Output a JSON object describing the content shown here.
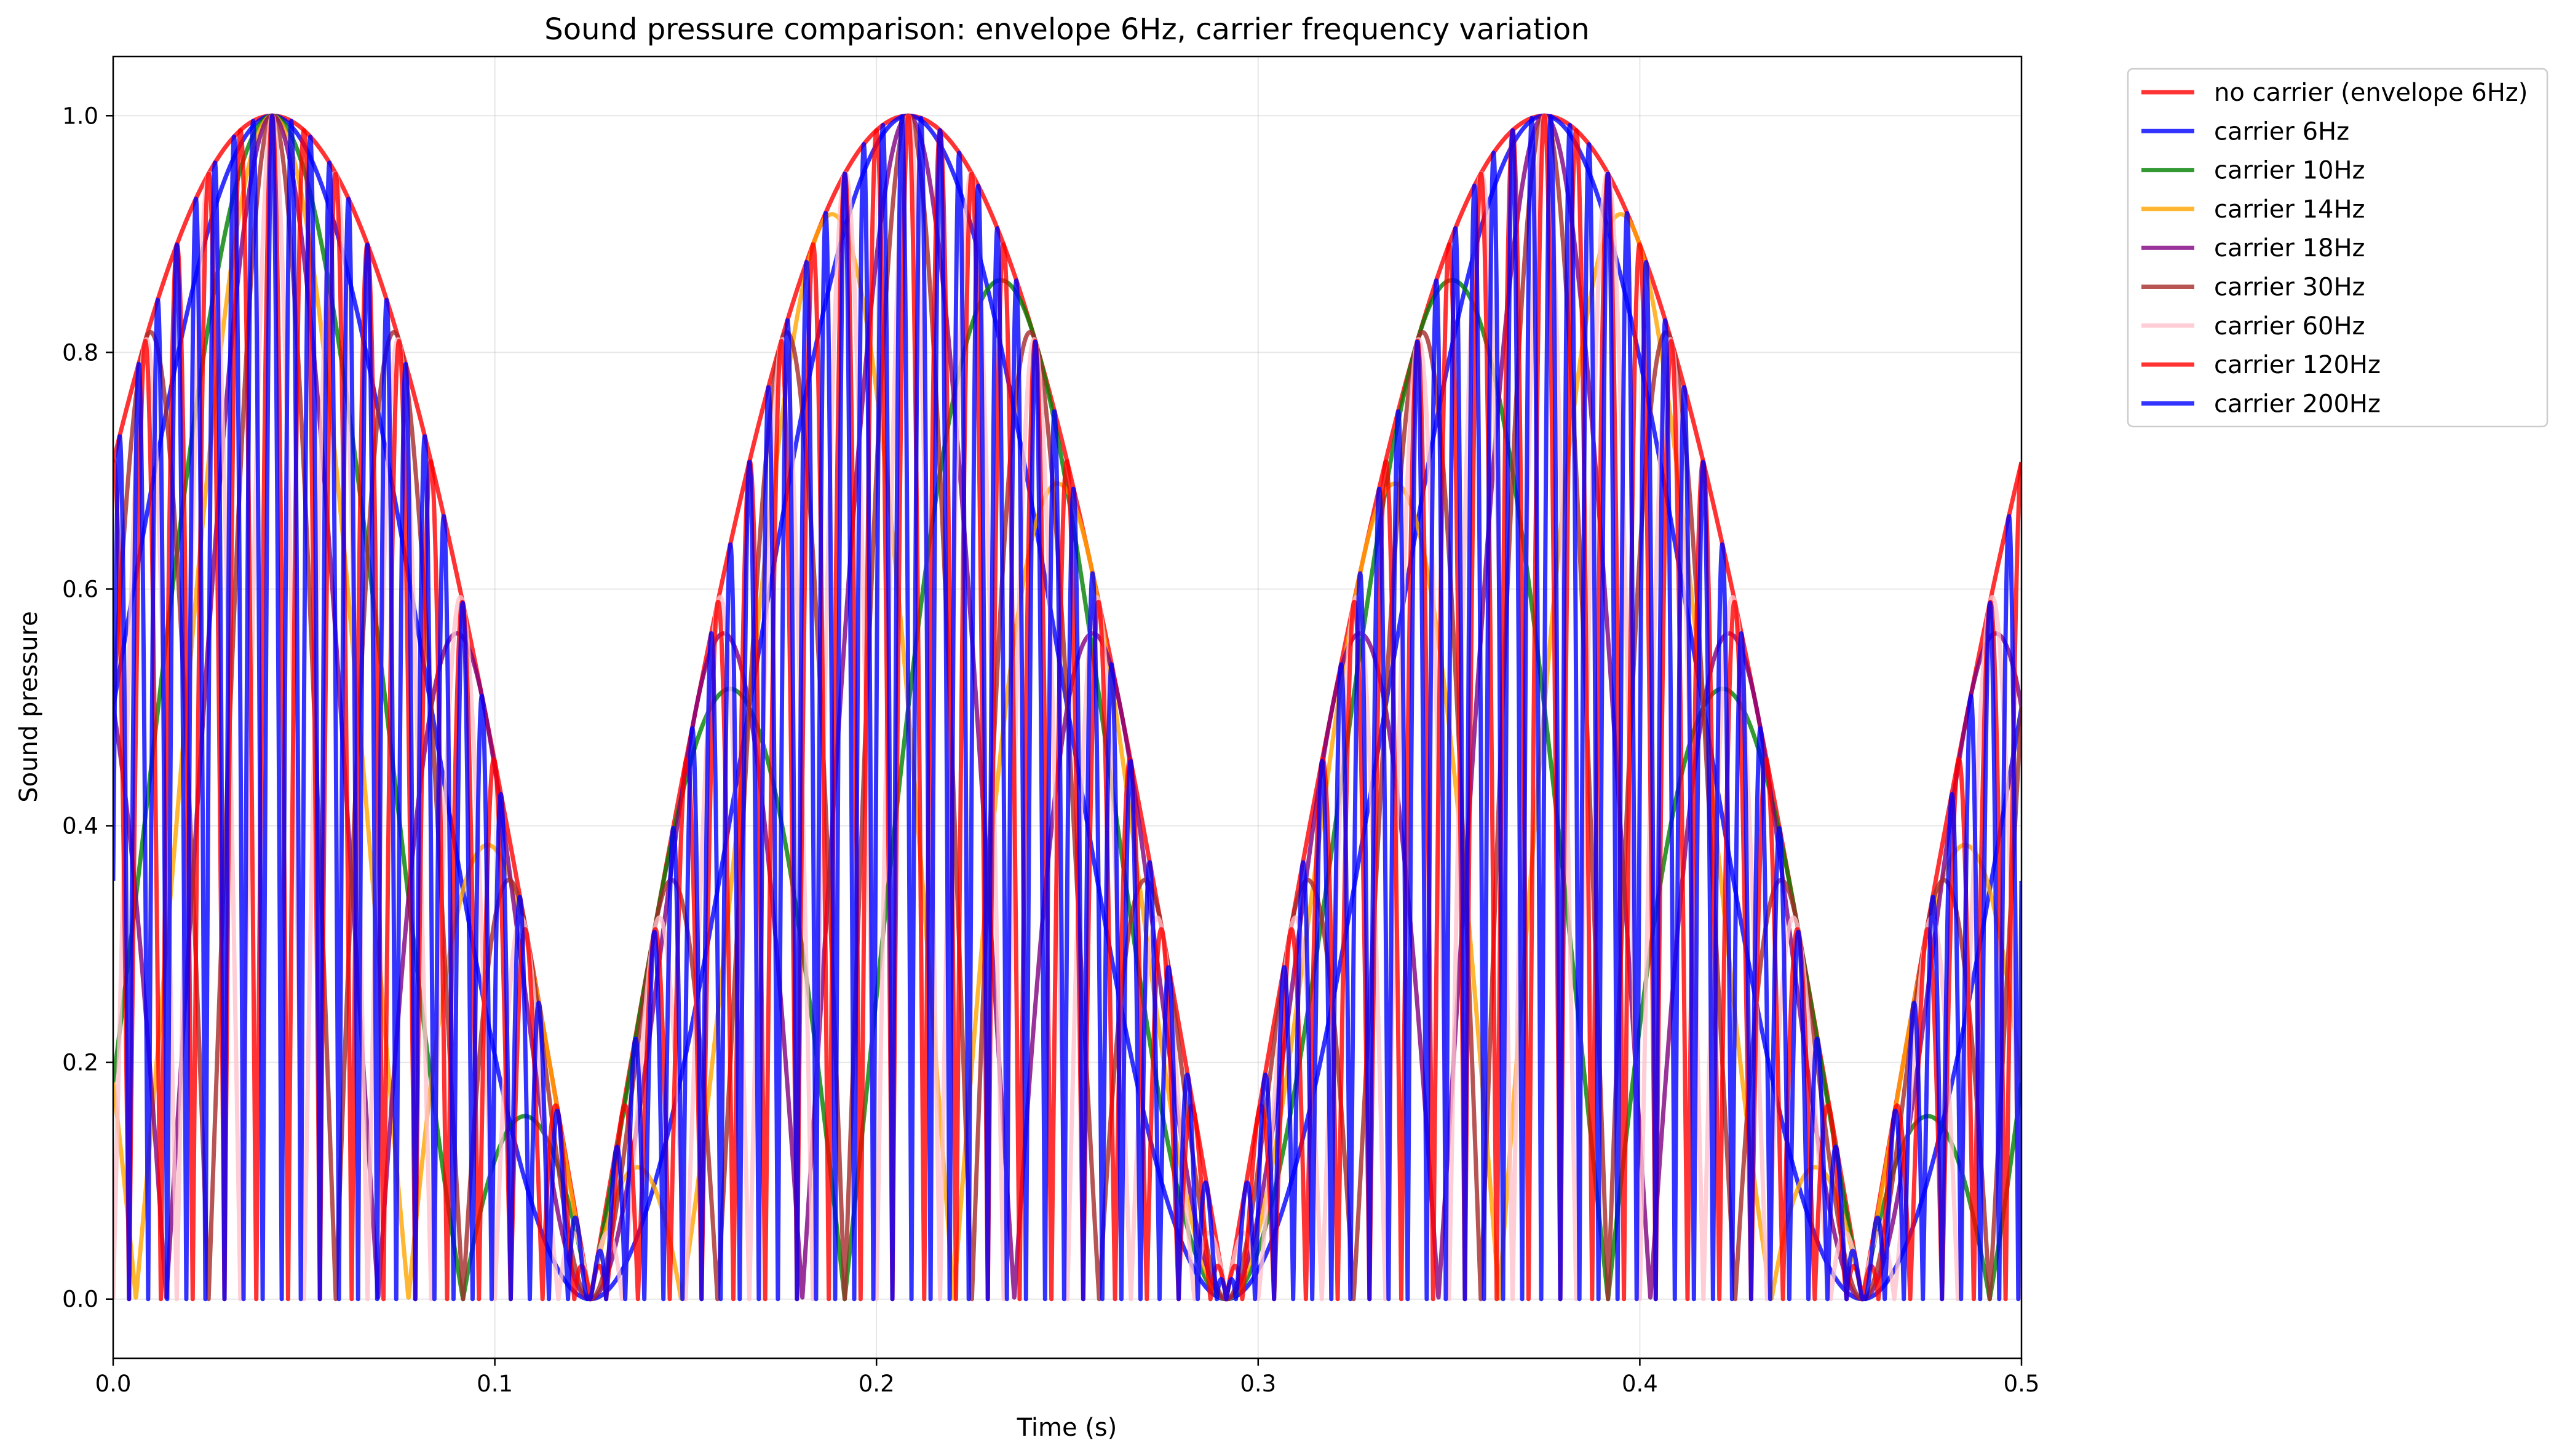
{
  "chart_data": {
    "type": "line",
    "title": "Sound pressure comparison: envelope 6Hz, carrier frequency variation",
    "xlabel": "Time (s)",
    "ylabel": "Sound pressure",
    "xlim": [
      0.0,
      0.5
    ],
    "ylim": [
      -0.05,
      1.05
    ],
    "xticks": [
      0.0,
      0.1,
      0.2,
      0.3,
      0.4,
      0.5
    ],
    "xtick_labels": [
      "0.0",
      "0.1",
      "0.2",
      "0.3",
      "0.4",
      "0.5"
    ],
    "yticks": [
      0.0,
      0.2,
      0.4,
      0.6,
      0.8,
      1.0
    ],
    "ytick_labels": [
      "0.0",
      "0.2",
      "0.4",
      "0.6",
      "0.8",
      "1.0"
    ],
    "grid": true,
    "legend_position": "outside-top-right",
    "envelope_hz": 6,
    "series": [
      {
        "name": "no carrier (envelope 6Hz)",
        "carrier_hz": null,
        "color": "#ff0000"
      },
      {
        "name": "carrier 6Hz",
        "carrier_hz": 6,
        "color": "#0000ff"
      },
      {
        "name": "carrier 10Hz",
        "carrier_hz": 10,
        "color": "#008000"
      },
      {
        "name": "carrier 14Hz",
        "carrier_hz": 14,
        "color": "#ffa500"
      },
      {
        "name": "carrier 18Hz",
        "carrier_hz": 18,
        "color": "#800080"
      },
      {
        "name": "carrier 30Hz",
        "carrier_hz": 30,
        "color": "#a52a2a"
      },
      {
        "name": "carrier 60Hz",
        "carrier_hz": 60,
        "color": "#ffc0cb"
      },
      {
        "name": "carrier 120Hz",
        "carrier_hz": 120,
        "color": "#ff0000"
      },
      {
        "name": "carrier 200Hz",
        "carrier_hz": 200,
        "color": "#0000ff"
      }
    ]
  }
}
